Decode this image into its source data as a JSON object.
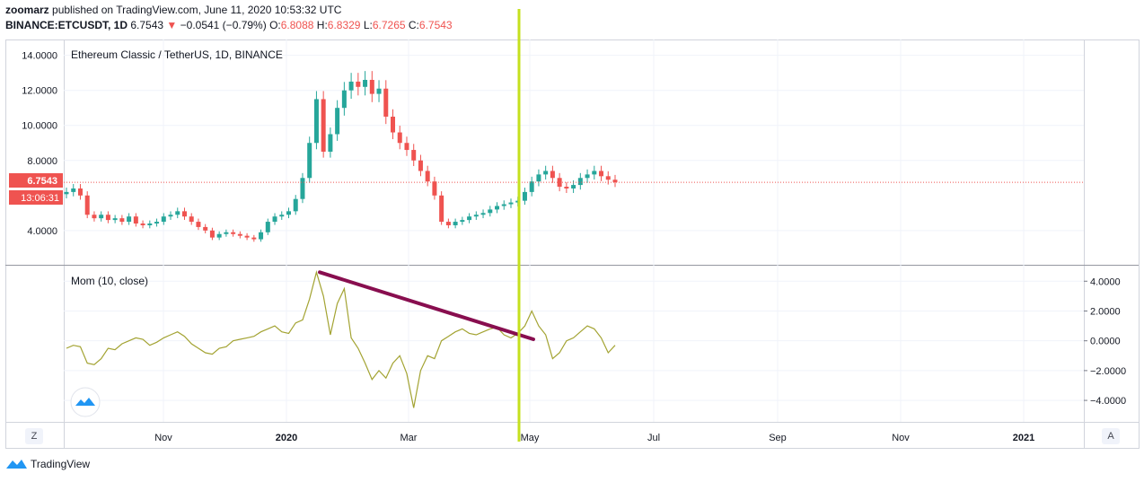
{
  "header": {
    "author": "zoomarz",
    "published_text": "published on TradingView.com, June 11, 2020 10:53:32 UTC",
    "symbol": "BINANCE:ETCUSDT, 1D",
    "last": "6.7543",
    "change_arrow": "▼",
    "change": "−0.0541 (−0.79%)",
    "o_label": "O:",
    "o_value": "6.8088",
    "h_label": "H:",
    "h_value": "6.8329",
    "l_label": "L:",
    "l_value": "6.7265",
    "c_label": "C:",
    "c_value": "6.7543"
  },
  "price_pane": {
    "legend": "Ethereum Classic / TetherUS, 1D, BINANCE",
    "price_badge": "6.7543",
    "countdown_badge": "13:06:31"
  },
  "momentum_pane": {
    "legend": "Mom (10, close)"
  },
  "buttons": {
    "left": "Z",
    "right": "A"
  },
  "brand": "TradingView",
  "colors": {
    "up": "#26a69a",
    "down": "#ef5350",
    "momentum": "#a3a332",
    "trendline": "#880e4f",
    "vertical_line": "#c5e01e"
  },
  "chart_data": [
    {
      "type": "candlestick",
      "title": "Ethereum Classic / TetherUS, 1D, BINANCE",
      "x_tick_labels": [
        "Nov",
        "2020",
        "Mar",
        "May",
        "Jul",
        "Sep",
        "Nov",
        "2021"
      ],
      "y_tick_labels": [
        "14.0000",
        "12.0000",
        "10.0000",
        "8.0000",
        "4.0000"
      ],
      "ylim": [
        2.3,
        14.7
      ],
      "last_price": 6.7543,
      "close_series_approx": [
        6.2,
        6.4,
        6.0,
        4.9,
        4.7,
        4.9,
        4.6,
        4.7,
        4.5,
        4.8,
        4.4,
        4.3,
        4.4,
        4.5,
        4.8,
        4.9,
        5.1,
        4.8,
        4.5,
        4.2,
        4.0,
        3.6,
        3.8,
        3.9,
        3.8,
        3.7,
        3.6,
        3.5,
        3.9,
        4.5,
        4.8,
        4.9,
        5.1,
        5.8,
        7.0,
        9.0,
        11.5,
        8.5,
        9.5,
        11.0,
        12.0,
        12.5,
        12.2,
        12.6,
        11.8,
        12.1,
        10.5,
        9.6,
        9.0,
        8.6,
        8.0,
        7.4,
        6.8,
        6.0,
        4.5,
        4.3,
        4.5,
        4.6,
        4.8,
        4.9,
        5.0,
        5.2,
        5.4,
        5.5,
        5.6,
        5.7,
        6.2,
        6.8,
        7.2,
        7.4,
        7.0,
        6.5,
        6.4,
        6.6,
        7.0,
        7.2,
        7.4,
        7.1,
        6.9,
        6.75
      ]
    },
    {
      "type": "line",
      "title": "Mom (10, close)",
      "y_tick_labels": [
        "4.0000",
        "2.0000",
        "0.0000",
        "−2.0000",
        "−4.0000"
      ],
      "ylim": [
        -5.2,
        4.8
      ],
      "series": [
        {
          "values": [
            -0.5,
            -0.3,
            -0.4,
            -1.5,
            -1.6,
            -1.2,
            -0.5,
            -0.6,
            -0.2,
            0.0,
            0.2,
            0.1,
            -0.3,
            -0.1,
            0.2,
            0.4,
            0.6,
            0.3,
            -0.2,
            -0.5,
            -0.8,
            -0.9,
            -0.5,
            -0.4,
            0.0,
            0.1,
            0.2,
            0.3,
            0.6,
            0.8,
            1.0,
            0.6,
            0.5,
            1.2,
            1.4,
            2.8,
            4.6,
            3.0,
            0.4,
            2.5,
            3.5,
            0.2,
            -0.5,
            -1.5,
            -2.6,
            -2.0,
            -2.5,
            -1.5,
            -1.0,
            -2.2,
            -4.5,
            -2.0,
            -1.0,
            -1.2,
            0.0,
            0.3,
            0.6,
            0.8,
            0.5,
            0.4,
            0.6,
            0.8,
            0.9,
            0.4,
            0.2,
            0.5,
            1.0,
            2.0,
            1.0,
            0.4,
            -1.2,
            -0.8,
            0.0,
            0.2,
            0.6,
            1.0,
            0.8,
            0.2,
            -0.8,
            -0.3
          ]
        }
      ],
      "trendline": {
        "from": 4.6,
        "to": 0.1
      }
    }
  ]
}
